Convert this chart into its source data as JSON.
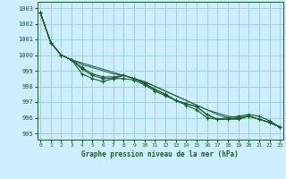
{
  "title": "Graphe pression niveau de la mer (hPa)",
  "background_color": "#cceeff",
  "grid_color": "#99cccc",
  "line_color": "#1a5c2a",
  "x_labels": [
    "0",
    "1",
    "2",
    "3",
    "4",
    "5",
    "6",
    "7",
    "8",
    "9",
    "10",
    "11",
    "12",
    "13",
    "14",
    "15",
    "16",
    "17",
    "18",
    "19",
    "20",
    "21",
    "22",
    "23"
  ],
  "ylim": [
    994.6,
    1003.4
  ],
  "yticks": [
    995,
    996,
    997,
    998,
    999,
    1000,
    1001,
    1002,
    1003
  ],
  "smooth_lines": [
    [
      1002.7,
      1000.8,
      1000.0,
      999.7,
      999.5,
      999.3,
      999.1,
      998.9,
      998.7,
      998.5,
      998.3,
      998.0,
      997.7,
      997.4,
      997.1,
      996.8,
      996.5,
      996.3,
      996.1,
      996.0,
      996.1,
      995.9,
      995.7,
      995.4
    ],
    [
      1002.7,
      1000.8,
      1000.0,
      999.7,
      999.4,
      999.2,
      999.0,
      998.8,
      998.7,
      998.5,
      998.3,
      998.0,
      997.7,
      997.4,
      997.1,
      996.8,
      996.5,
      996.2,
      996.0,
      995.9,
      996.1,
      995.9,
      995.7,
      995.4
    ]
  ],
  "marker_lines": [
    [
      1002.7,
      1000.8,
      1000.0,
      999.7,
      998.8,
      998.5,
      998.3,
      998.5,
      998.5,
      998.4,
      998.1,
      997.7,
      997.4,
      997.1,
      996.8,
      996.5,
      996.0,
      995.9,
      995.9,
      995.9,
      996.1,
      995.9,
      995.7,
      995.4
    ],
    [
      1002.7,
      1000.8,
      1000.0,
      999.7,
      999.1,
      998.7,
      998.5,
      998.5,
      998.7,
      998.5,
      998.2,
      997.8,
      997.5,
      997.1,
      996.9,
      996.7,
      996.2,
      995.9,
      995.9,
      996.0,
      996.1,
      995.9,
      995.7,
      995.4
    ],
    [
      1002.7,
      1000.8,
      1000.0,
      999.7,
      999.2,
      998.8,
      998.6,
      998.6,
      998.7,
      998.5,
      998.2,
      997.8,
      997.5,
      997.1,
      996.9,
      996.7,
      996.2,
      995.9,
      996.0,
      996.1,
      996.2,
      996.1,
      995.8,
      995.4
    ]
  ]
}
